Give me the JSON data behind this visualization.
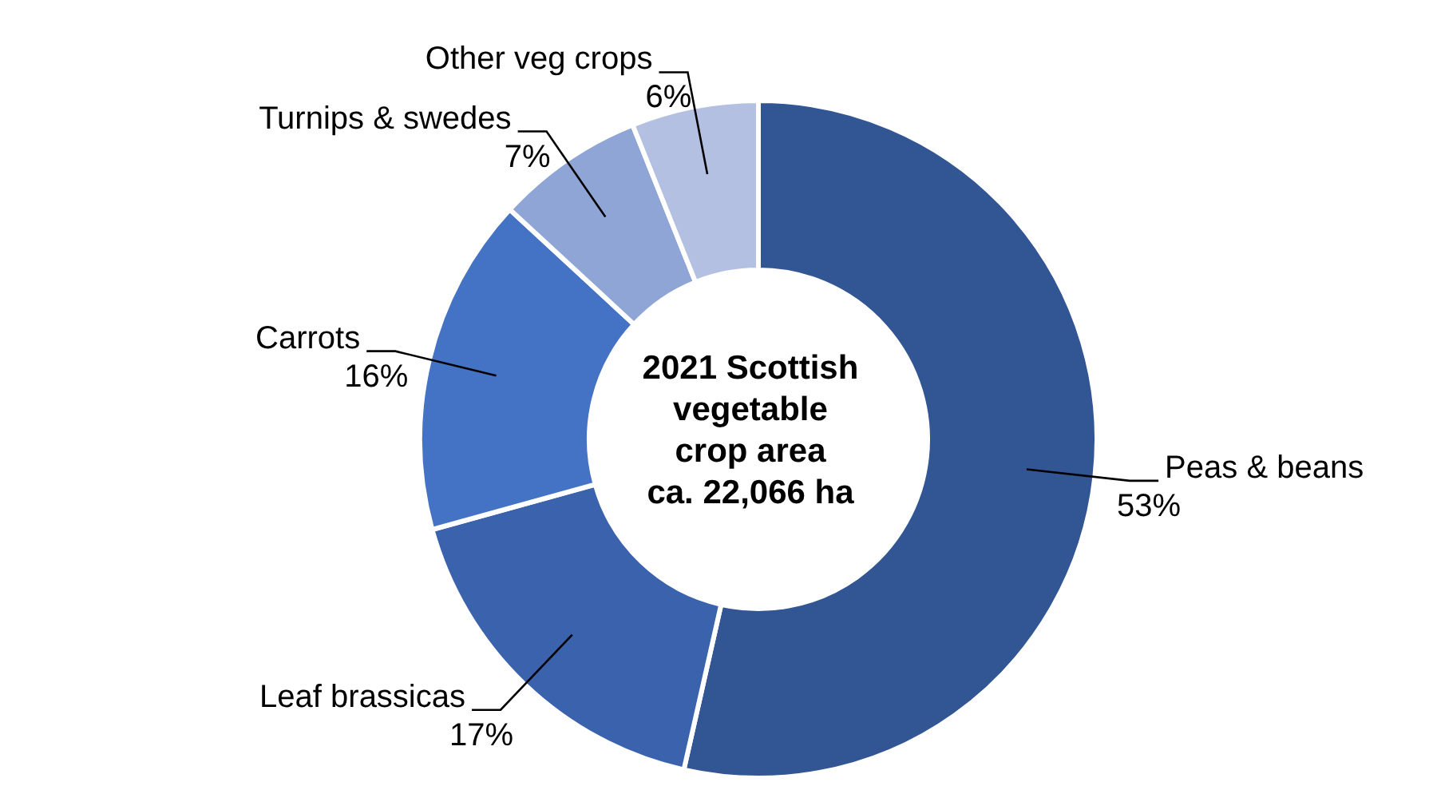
{
  "chart_data": {
    "type": "donut",
    "title": "2021 Scottish\nvegetable\ncrop area\nca. 22,066 ha",
    "categories": [
      "Peas & beans",
      "Leaf brassicas",
      "Carrots",
      "Turnips & swedes",
      "Other veg crops"
    ],
    "values": [
      53,
      17,
      16,
      7,
      6
    ],
    "colors": [
      "#325694",
      "#3a62ad",
      "#4472c4",
      "#8fa5d6",
      "#b4c0e2"
    ],
    "value_labels": [
      "53%",
      "17%",
      "16%",
      "7%",
      "6%"
    ]
  }
}
